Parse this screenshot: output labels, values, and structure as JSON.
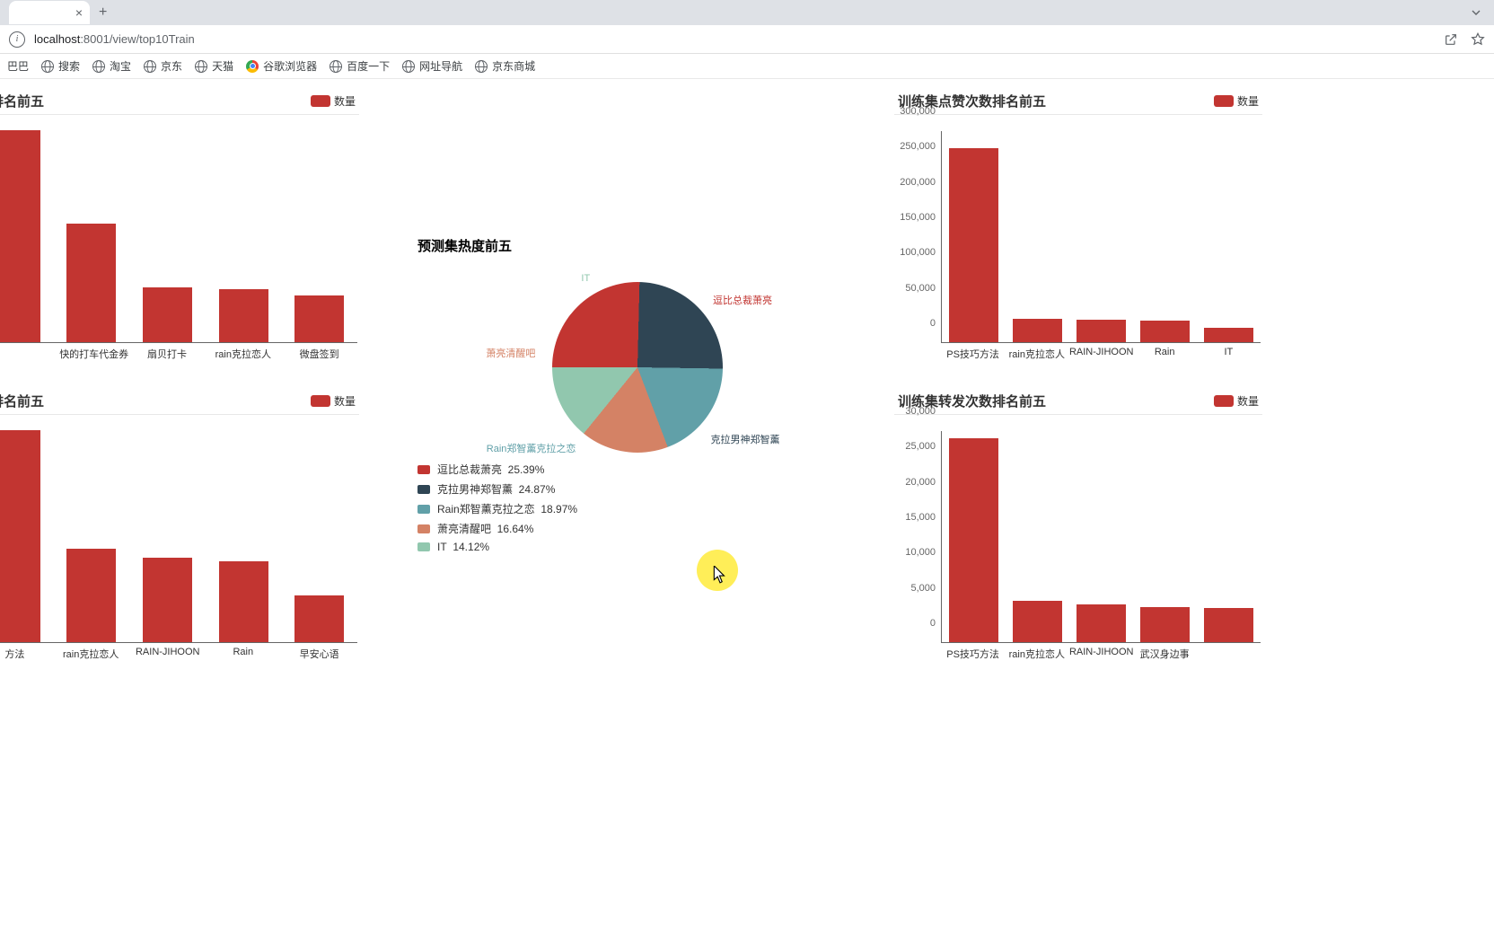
{
  "browser": {
    "new_tab": "+",
    "close": "×",
    "info": "i",
    "url_host": "localhost",
    "url_port": ":8001",
    "url_path": "/view/top10Train",
    "dropdown_glyph": "⌄"
  },
  "bookmarks": {
    "b0": "巴巴",
    "b1": "搜索",
    "b2": "淘宝",
    "b3": "京东",
    "b4": "天猫",
    "b5": "谷歌浏览器",
    "b6": "百度一下",
    "b7": "网址导航",
    "b8": "京东商城"
  },
  "colors": {
    "bar": "#c23531",
    "pie0": "#c23531",
    "pie1": "#2f4554",
    "pie2": "#61a0a8",
    "pie3": "#d48265",
    "pie4": "#91c7ae"
  },
  "chart_tl": {
    "title": "数排名前五",
    "legend": "数量",
    "ymax": 1,
    "cats": [
      "",
      "快的打车代金券",
      "扇贝打卡",
      "rain克拉恋人",
      "微盘签到"
    ],
    "vals": [
      1.0,
      0.56,
      0.26,
      0.25,
      0.22
    ]
  },
  "chart_bl": {
    "title": "数排名前五",
    "legend": "数量",
    "ymax": 1,
    "cats": [
      "方法",
      "rain克拉恋人",
      "RAIN-JIHOON",
      "Rain",
      "早安心语"
    ],
    "vals": [
      1.0,
      0.44,
      0.4,
      0.38,
      0.22
    ]
  },
  "chart_tr": {
    "title": "训练集点赞次数排名前五",
    "legend": "数量",
    "ymax": 300000,
    "yticks": [
      "300,000",
      "250,000",
      "200,000",
      "150,000",
      "100,000",
      "50,000",
      "0"
    ],
    "cats": [
      "PS技巧方法",
      "rain克拉恋人",
      "RAIN-JIHOON",
      "Rain",
      "IT"
    ],
    "vals": [
      275000,
      33000,
      32000,
      31000,
      20000
    ]
  },
  "chart_br": {
    "title": "训练集转发次数排名前五",
    "legend": "数量",
    "ymax": 30000,
    "yticks": [
      "30,000",
      "25,000",
      "20,000",
      "15,000",
      "10,000",
      "5,000",
      "0"
    ],
    "cats": [
      "PS技巧方法",
      "rain克拉恋人",
      "RAIN-JIHOON",
      "武汉身边事",
      ""
    ],
    "vals": [
      28800,
      5900,
      5300,
      5000,
      4800
    ]
  },
  "pie": {
    "title": "预测集热度前五",
    "labels": [
      "逗比总裁萧亮",
      "克拉男神郑智薰",
      "Rain郑智薰克拉之恋",
      "萧亮清醒吧",
      "IT"
    ],
    "pcts": [
      "25.39%",
      "24.87%",
      "18.97%",
      "16.64%",
      "14.12%"
    ],
    "angles": [
      0,
      91.4,
      180.9,
      249.2,
      309.1,
      360
    ]
  }
}
